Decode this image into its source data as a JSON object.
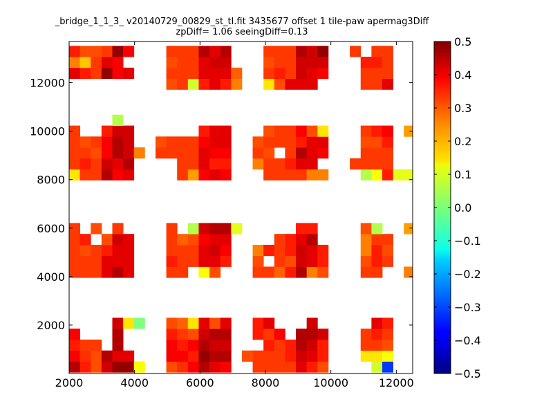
{
  "chart_data": {
    "type": "heatmap",
    "title_line1": "_bridge_1_1_3_ v20140729_00829_st_tl.fit 3435677 offset 1 tile-paw apermag3Diff",
    "title_line2": "zpDiff= 1.06 seeingDiff=0.13",
    "xlim": [
      2000,
      12500
    ],
    "ylim": [
      0,
      13700
    ],
    "x_ticks": [
      2000,
      4000,
      6000,
      8000,
      10000,
      12000
    ],
    "y_ticks": [
      2000,
      4000,
      6000,
      8000,
      10000,
      12000
    ],
    "x_tick_labels": [
      "2000",
      "4000",
      "6000",
      "8000",
      "10000",
      "12000"
    ],
    "y_tick_labels": [
      "2000",
      "4000",
      "6000",
      "8000",
      "10000",
      "12000"
    ],
    "colormap": "jet",
    "color_range": [
      -0.5,
      0.5
    ],
    "colorbar_ticks": [
      0.5,
      0.4,
      0.3,
      0.2,
      0.1,
      0.0,
      -0.1,
      -0.2,
      -0.3,
      -0.4,
      -0.5
    ],
    "colorbar_tick_labels": [
      "0.5",
      "0.4",
      "0.3",
      "0.2",
      "0.1",
      "0.0",
      "−0.1",
      "−0.2",
      "−0.3",
      "−0.4",
      "−0.5"
    ],
    "grid": false,
    "cell_width": 330,
    "cell_height": 450,
    "cell_x_starts": [
      2000,
      2330,
      2660,
      2990,
      3320,
      3650,
      3980,
      4310,
      4640,
      4970,
      5300,
      5630,
      5960,
      6290,
      6620,
      6950,
      7280,
      7610,
      7940,
      8270,
      8600,
      8930,
      9260,
      9590,
      9920,
      10250,
      10580,
      10910,
      11240,
      11570,
      11900,
      12230
    ],
    "row_y_starts": [
      50,
      500,
      950,
      1400,
      1850,
      3960,
      4410,
      4860,
      5310,
      5760,
      7980,
      8430,
      8880,
      9330,
      9780,
      10230,
      11720,
      12170,
      12620,
      13070
    ],
    "rows": [
      [
        0.45,
        0.35,
        0.3,
        0.42,
        0.48,
        0.48,
        0.12,
        null,
        null,
        0.3,
        0.33,
        0.38,
        0.45,
        0.4,
        0.38,
        null,
        null,
        0.32,
        0.32,
        0.32,
        0.32,
        0.4,
        0.35,
        0.3,
        null,
        null,
        null,
        null,
        0.08,
        -0.32,
        null,
        null
      ],
      [
        0.38,
        0.33,
        0.3,
        0.45,
        0.4,
        0.4,
        null,
        null,
        null,
        0.38,
        0.38,
        0.35,
        0.48,
        0.45,
        0.45,
        null,
        0.3,
        0.32,
        0.32,
        0.32,
        0.35,
        0.42,
        0.4,
        0.35,
        null,
        null,
        null,
        0.15,
        0.15,
        0.12,
        null,
        null
      ],
      [
        0.35,
        0.32,
        0.32,
        null,
        0.45,
        null,
        null,
        null,
        null,
        0.38,
        0.35,
        0.38,
        0.45,
        0.42,
        0.42,
        null,
        null,
        null,
        0.35,
        0.32,
        0.35,
        0.45,
        0.42,
        0.35,
        null,
        null,
        null,
        0.32,
        0.32,
        0.3,
        null,
        null
      ],
      [
        0.38,
        null,
        null,
        null,
        0.45,
        null,
        null,
        null,
        null,
        0.35,
        0.32,
        0.3,
        0.42,
        0.45,
        0.45,
        null,
        null,
        0.35,
        0.32,
        0.38,
        null,
        0.45,
        0.45,
        0.42,
        null,
        null,
        null,
        0.32,
        0.35,
        0.32,
        null,
        null
      ],
      [
        null,
        null,
        null,
        null,
        0.42,
        0.15,
        0.0,
        null,
        null,
        0.3,
        0.28,
        0.15,
        0.4,
        0.3,
        0.4,
        null,
        null,
        0.35,
        0.4,
        null,
        null,
        null,
        0.42,
        null,
        null,
        null,
        null,
        null,
        0.4,
        0.35,
        null,
        null
      ],
      [
        0.32,
        0.32,
        0.32,
        0.4,
        0.45,
        0.4,
        null,
        null,
        null,
        0.32,
        0.32,
        null,
        0.12,
        0.3,
        null,
        null,
        null,
        0.32,
        0.32,
        0.28,
        0.35,
        0.45,
        0.25,
        0.3,
        null,
        null,
        null,
        0.32,
        0.32,
        null,
        null,
        0.25
      ],
      [
        0.32,
        0.32,
        0.32,
        0.4,
        0.4,
        0.4,
        null,
        null,
        null,
        0.35,
        0.32,
        0.32,
        0.4,
        0.4,
        0.35,
        null,
        null,
        0.3,
        null,
        0.32,
        0.3,
        0.42,
        0.4,
        0.35,
        null,
        null,
        null,
        0.3,
        0.35,
        0.32,
        null,
        null
      ],
      [
        0.32,
        0.3,
        0.32,
        0.35,
        0.4,
        0.4,
        null,
        null,
        null,
        0.32,
        0.32,
        0.32,
        0.4,
        0.42,
        0.38,
        null,
        null,
        0.25,
        0.35,
        0.32,
        0.35,
        0.42,
        0.4,
        0.35,
        null,
        null,
        null,
        0.25,
        0.35,
        0.3,
        null,
        null
      ],
      [
        0.32,
        0.35,
        null,
        0.3,
        0.42,
        0.4,
        null,
        null,
        null,
        0.32,
        0.28,
        0.3,
        0.38,
        0.4,
        0.4,
        null,
        null,
        null,
        null,
        0.32,
        0.35,
        0.4,
        0.45,
        null,
        null,
        null,
        null,
        0.25,
        0.32,
        0.32,
        null,
        null
      ],
      [
        0.32,
        null,
        0.3,
        null,
        0.32,
        null,
        null,
        null,
        null,
        0.32,
        null,
        0.05,
        0.42,
        0.45,
        0.45,
        0.1,
        null,
        null,
        null,
        null,
        null,
        0.35,
        0.35,
        null,
        null,
        null,
        null,
        0.3,
        0.05,
        null,
        null,
        0.22
      ],
      [
        0.15,
        0.32,
        0.32,
        0.45,
        0.38,
        0.4,
        null,
        null,
        null,
        null,
        0.32,
        0.22,
        0.38,
        0.4,
        0.38,
        null,
        null,
        null,
        0.32,
        0.32,
        0.32,
        0.32,
        0.25,
        0.25,
        null,
        null,
        null,
        0.05,
        0.12,
        0.35,
        0.1,
        0.1
      ],
      [
        0.32,
        0.35,
        0.32,
        0.42,
        0.4,
        0.45,
        null,
        null,
        null,
        null,
        0.32,
        0.32,
        0.4,
        0.35,
        0.35,
        null,
        null,
        0.25,
        0.32,
        0.32,
        0.35,
        0.4,
        0.4,
        null,
        null,
        null,
        0.32,
        0.32,
        0.32,
        0.32,
        null,
        null
      ],
      [
        0.32,
        0.32,
        0.3,
        0.38,
        0.45,
        0.42,
        0.25,
        null,
        0.32,
        0.32,
        0.32,
        0.32,
        0.4,
        0.38,
        0.38,
        null,
        null,
        0.32,
        0.3,
        null,
        0.32,
        0.45,
        0.4,
        0.38,
        null,
        null,
        null,
        0.32,
        0.32,
        0.32,
        null,
        null
      ],
      [
        0.32,
        0.3,
        0.32,
        0.38,
        0.45,
        0.42,
        null,
        null,
        0.3,
        0.32,
        0.32,
        0.32,
        0.38,
        0.4,
        0.4,
        null,
        null,
        0.3,
        0.32,
        0.32,
        0.32,
        0.35,
        0.4,
        0.4,
        null,
        null,
        null,
        0.3,
        0.3,
        0.35,
        null,
        null
      ],
      [
        0.32,
        null,
        null,
        0.35,
        0.42,
        0.42,
        null,
        null,
        null,
        null,
        null,
        null,
        0.35,
        0.4,
        0.4,
        null,
        null,
        null,
        0.3,
        0.32,
        0.32,
        0.38,
        0.3,
        0.15,
        null,
        null,
        null,
        0.32,
        0.35,
        0.38,
        null,
        0.22
      ],
      [
        null,
        null,
        null,
        null,
        0.05,
        null,
        null,
        null,
        null,
        null,
        null,
        null,
        null,
        null,
        null,
        null,
        null,
        null,
        null,
        null,
        null,
        null,
        null,
        null,
        null,
        null,
        null,
        null,
        null,
        null,
        null,
        null
      ],
      [
        null,
        null,
        null,
        null,
        null,
        null,
        null,
        null,
        null,
        0.3,
        0.32,
        0.08,
        0.35,
        0.4,
        0.35,
        0.25,
        null,
        null,
        0.15,
        0.3,
        0.4,
        0.4,
        0.4,
        null,
        null,
        null,
        null,
        0.32,
        0.32,
        0.4,
        null,
        null
      ],
      [
        0.4,
        0.35,
        0.32,
        0.48,
        0.38,
        0.4,
        null,
        null,
        null,
        0.32,
        0.32,
        0.32,
        0.4,
        0.4,
        0.4,
        0.28,
        null,
        null,
        0.32,
        0.35,
        0.32,
        0.42,
        0.4,
        0.38,
        null,
        null,
        null,
        0.32,
        0.32,
        0.32,
        null,
        null
      ],
      [
        0.25,
        0.18,
        0.32,
        0.4,
        0.38,
        null,
        null,
        null,
        null,
        0.3,
        0.32,
        0.32,
        0.4,
        0.42,
        0.42,
        null,
        null,
        null,
        0.3,
        0.32,
        0.32,
        0.42,
        0.42,
        0.42,
        null,
        null,
        null,
        0.35,
        0.35,
        0.32,
        null,
        null
      ],
      [
        0.35,
        0.3,
        0.3,
        0.32,
        0.48,
        0.38,
        null,
        null,
        null,
        0.32,
        0.32,
        0.32,
        0.45,
        0.4,
        0.45,
        null,
        null,
        null,
        0.32,
        0.32,
        0.32,
        0.45,
        0.42,
        0.48,
        null,
        null,
        0.32,
        null,
        0.32,
        0.32,
        null,
        null
      ]
    ]
  }
}
